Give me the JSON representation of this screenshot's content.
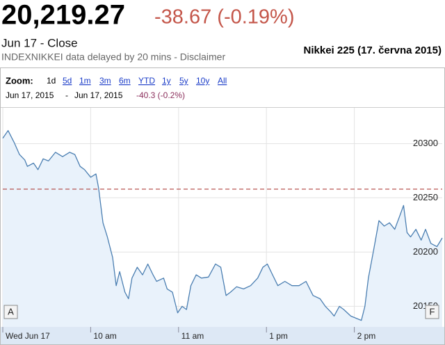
{
  "header": {
    "price": "20,219.27",
    "change": "-38.67 (-0.19%)",
    "status": "Jun 17 - Close",
    "source": "INDEXNIKKEI data delayed by 20 mins - Disclaimer",
    "caption": "Nikkei 225 (17. června 2015)"
  },
  "zoom": {
    "label": "Zoom:",
    "options": [
      "1d",
      "5d",
      "1m",
      "3m",
      "6m",
      "YTD",
      "1y",
      "5y",
      "10y",
      "All"
    ]
  },
  "range": {
    "from": "Jun 17, 2015",
    "separator": "-",
    "to": "Jun 17, 2015",
    "change": "-40.3 (-0.2%)"
  },
  "chart_data": {
    "type": "area",
    "x": [
      0,
      0.06,
      0.13,
      0.19,
      0.25,
      0.28,
      0.35,
      0.4,
      0.46,
      0.52,
      0.6,
      0.68,
      0.76,
      0.82,
      0.88,
      0.93,
      1.0,
      1.06,
      1.09,
      1.14,
      1.19,
      1.25,
      1.29,
      1.33,
      1.39,
      1.43,
      1.47,
      1.53,
      1.59,
      1.65,
      1.71,
      1.75,
      1.83,
      1.87,
      1.93,
      1.99,
      2.04,
      2.09,
      2.14,
      2.2,
      2.26,
      2.34,
      2.42,
      2.48,
      2.54,
      2.59,
      2.66,
      2.74,
      2.82,
      2.9,
      2.96,
      3.01,
      3.07,
      3.13,
      3.21,
      3.29,
      3.37,
      3.45,
      3.53,
      3.61,
      3.67,
      3.73,
      3.77,
      3.83,
      3.88,
      3.96,
      4.02,
      4.08,
      4.12,
      4.16,
      4.22,
      4.28,
      4.34,
      4.4,
      4.46,
      4.52,
      4.56,
      4.6,
      4.64,
      4.7,
      4.76,
      4.81,
      4.87,
      4.94,
      5.0
    ],
    "values": [
      20305,
      20312,
      20301,
      20290,
      20285,
      20279,
      20282,
      20276,
      20286,
      20284,
      20292,
      20288,
      20292,
      20290,
      20279,
      20276,
      20269,
      20272,
      20259,
      20227,
      20214,
      20195,
      20169,
      20182,
      20163,
      20157,
      20176,
      20186,
      20179,
      20189,
      20179,
      20173,
      20176,
      20166,
      20163,
      20144,
      20150,
      20147,
      20169,
      20179,
      20176,
      20177,
      20189,
      20186,
      20160,
      20163,
      20168,
      20166,
      20169,
      20176,
      20186,
      20189,
      20179,
      20169,
      20173,
      20169,
      20169,
      20173,
      20160,
      20157,
      20150,
      20145,
      20141,
      20150,
      20147,
      20141,
      20139,
      20137,
      20150,
      20176,
      20202,
      20229,
      20224,
      20227,
      20221,
      20234,
      20243,
      20218,
      20214,
      20221,
      20211,
      20221,
      20208,
      20205,
      20213
    ],
    "color": "#4a7eb1",
    "fill_color": "#e9f2fb",
    "xlim": [
      0,
      5
    ],
    "xticks": [
      {
        "value": 0,
        "label": "Wed Jun 17"
      },
      {
        "value": 1,
        "label": "10 am"
      },
      {
        "value": 2,
        "label": "11 am"
      },
      {
        "value": 3,
        "label": "1 pm"
      },
      {
        "value": 4,
        "label": "2 pm"
      }
    ],
    "ylim": [
      20131,
      20333
    ],
    "yticks": [
      20150,
      20200,
      20250,
      20300
    ],
    "reference_line": 20258,
    "reference_color": "#b0413e",
    "grid": true,
    "flags": [
      "A",
      "F"
    ]
  }
}
